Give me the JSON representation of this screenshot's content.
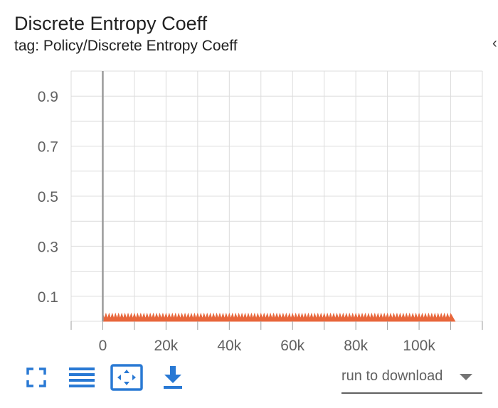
{
  "card": {
    "title": "Discrete Entropy Coeff",
    "subtitle": "tag: Policy/Discrete Entropy Coeff"
  },
  "toolbar": {
    "fit_icon": "fullscreen-icon",
    "lines_icon": "data-table-icon",
    "zoom_icon": "fit-domain-icon",
    "download_icon": "download-icon",
    "download_select_label": "run to download",
    "accent_color": "#2979d4"
  },
  "chart_data": {
    "type": "line",
    "xlim": [
      -10000,
      120000
    ],
    "ylim": [
      0,
      1.0
    ],
    "xticks": [
      0,
      20000,
      40000,
      60000,
      80000,
      100000
    ],
    "xtick_labels": [
      "0",
      "20k",
      "40k",
      "60k",
      "80k",
      "100k"
    ],
    "yticks": [
      0.1,
      0.3,
      0.5,
      0.7,
      0.9
    ],
    "ytick_labels": [
      "0.1",
      "0.3",
      "0.5",
      "0.7",
      "0.9"
    ],
    "grid": true,
    "series": [
      {
        "color": "#e8673c",
        "x_start": 0,
        "x_end": 110000,
        "y_min": 0.0,
        "y_max": 0.03
      }
    ]
  }
}
